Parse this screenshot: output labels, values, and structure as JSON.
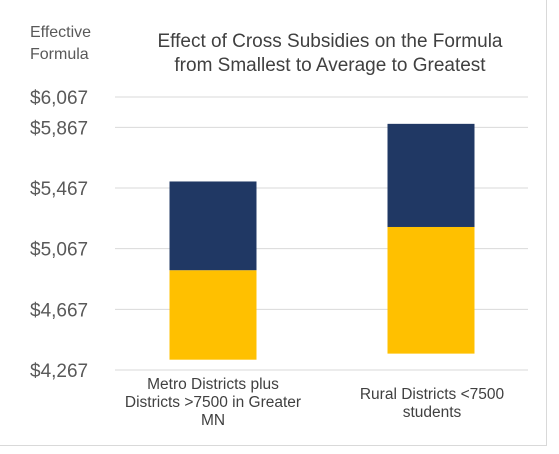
{
  "chart_data": {
    "type": "bar",
    "stacked": true,
    "floating": true,
    "title_lines": [
      "Effect of Cross Subsidies on the Formula",
      "from Smallest to Average to Greatest"
    ],
    "ylabel_lines": [
      "Effective",
      "Formula"
    ],
    "yticks": [
      "$4,267",
      "$4,667",
      "$5,067",
      "$5,467",
      "$5,867",
      "$6,067"
    ],
    "ytick_values": [
      4267,
      4667,
      5067,
      5467,
      5867,
      6067
    ],
    "ylim": [
      4267,
      6067
    ],
    "grid": true,
    "categories": [
      [
        "Metro Districts plus",
        "Districts >7500 in Greater",
        "MN"
      ],
      [
        "Rural Districts <7500",
        "students"
      ]
    ],
    "series": [
      {
        "role": "smallest-to-average",
        "color": "#FFC000",
        "low": [
          4335,
          4375
        ],
        "high": [
          4925,
          5210
        ]
      },
      {
        "role": "average-to-greatest",
        "color": "#203864",
        "low": [
          4925,
          5210
        ],
        "high": [
          5510,
          5890
        ]
      }
    ]
  }
}
